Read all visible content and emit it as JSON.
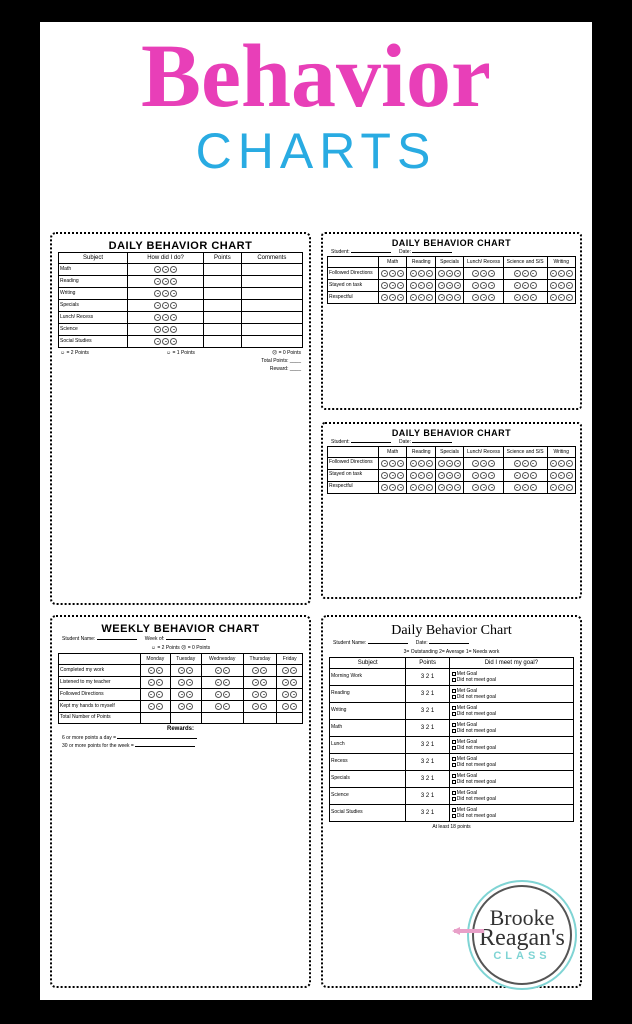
{
  "title": {
    "line1": "Behavior",
    "line2": "CHARTS"
  },
  "colors": {
    "pink": "#e83fb8",
    "blue": "#29abe2",
    "teal": "#7fd4d4",
    "logopink": "#e8a0c8"
  },
  "card1": {
    "title": "DAILY BEHAVIOR CHART",
    "headers": [
      "Subject",
      "How did I do?",
      "Points",
      "Comments"
    ],
    "subjects": [
      "Math",
      "Reading",
      "Writing",
      "Specials",
      "Lunch/ Recess",
      "Science",
      "Social Studies"
    ],
    "legend": [
      "☺ = 2 Points",
      "☺ = 1 Points",
      "☹ = 0 Points"
    ],
    "totals": [
      "Total Points: ____",
      "Reward: ____"
    ]
  },
  "card2": {
    "title": "DAILY BEHAVIOR CHART",
    "student": "Student:",
    "date": "Date:",
    "cols": [
      "Math",
      "Reading",
      "Specials",
      "Lunch/ Recess",
      "Science and S/S",
      "Writing"
    ],
    "rows": [
      "Followed Directions",
      "Stayed on task",
      "Respectful"
    ]
  },
  "card3": {
    "title": "WEEKLY BEHAVIOR CHART",
    "name_label": "Student Name:",
    "week_label": "Week of:",
    "legend": "☺ = 2 Points    ☹ = 0 Points",
    "days": [
      "Monday",
      "Tuesday",
      "Wednesday",
      "Thursday",
      "Friday"
    ],
    "rows": [
      "Completed my work",
      "Listened to my teacher",
      "Followed Directions",
      "Kept my hands to myself",
      "Total Number of Points"
    ],
    "rewards_title": "Rewards:",
    "rewards": [
      "6 or more points a day =",
      "30 or more points for the week ="
    ]
  },
  "card4": {
    "title": "Daily Behavior Chart",
    "name_label": "Student Name:",
    "date_label": "Date:",
    "scale": "3= Outstanding   2= Average   1= Needs work",
    "headers": [
      "Subject",
      "Points",
      "Did I meet my goal?"
    ],
    "subjects": [
      "Morning Work",
      "Reading",
      "Writing",
      "Math",
      "Lunch",
      "Recess",
      "Specials",
      "Science",
      "Social Studies"
    ],
    "points": "3   2   1",
    "met": "Met Goal",
    "notmet": "Did not meet goal",
    "footer": "At least 18 points"
  },
  "logo": {
    "l1": "Brooke",
    "l2": "Reagan's",
    "l3": "CLASS"
  }
}
